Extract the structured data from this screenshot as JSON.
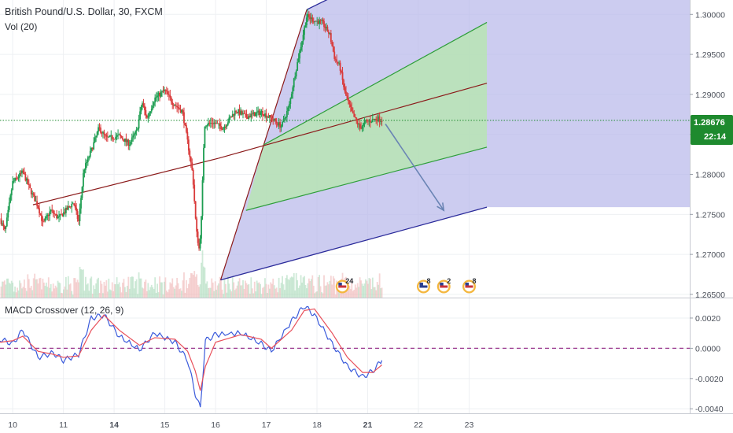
{
  "header": {
    "title": "British Pound/U.S. Dollar, 30, FXCM",
    "volume_label": "Vol (20)",
    "macd_label": "MACD Crossover (12, 26, 9)"
  },
  "price_badge": {
    "value": "1.28676",
    "countdown": "22:14",
    "color": "#1e8a2e"
  },
  "events": [
    {
      "flag": "us",
      "count": "24",
      "date_index": 20.5
    },
    {
      "flag": "uk",
      "count": "8",
      "date_index": 22.1
    },
    {
      "flag": "us",
      "count": "2",
      "date_index": 22.5
    },
    {
      "flag": "us",
      "count": "8",
      "date_index": 23.0
    }
  ],
  "chart_data": [
    {
      "type": "candlestick",
      "instrument": "British Pound/U.S. Dollar",
      "interval": "30",
      "source": "FXCM",
      "y_axis": {
        "range": [
          1.2646,
          1.3018
        ],
        "ticks": [
          "1.30000",
          "1.29500",
          "1.29000",
          "1.28500",
          "1.28000",
          "1.27500",
          "1.27000",
          "1.26500"
        ]
      },
      "x_axis": {
        "range": [
          9.75,
          23.35
        ],
        "ticks": [
          {
            "value": 10,
            "label": "10",
            "bold": false
          },
          {
            "value": 11,
            "label": "11",
            "bold": false
          },
          {
            "value": 12,
            "label": "14",
            "bold": true
          },
          {
            "value": 13,
            "label": "15",
            "bold": false
          },
          {
            "value": 14,
            "label": "16",
            "bold": false
          },
          {
            "value": 15,
            "label": "17",
            "bold": false
          },
          {
            "value": 16,
            "label": "18",
            "bold": false
          },
          {
            "value": 17,
            "label": "21",
            "bold": true
          },
          {
            "value": 18,
            "label": "22",
            "bold": false
          },
          {
            "value": 19,
            "label": "23",
            "bold": false
          }
        ]
      },
      "last_price": 1.28676,
      "price_path": [
        [
          9.75,
          1.2745
        ],
        [
          9.85,
          1.2728
        ],
        [
          10.0,
          1.279
        ],
        [
          10.2,
          1.2803
        ],
        [
          10.35,
          1.278
        ],
        [
          10.5,
          1.276
        ],
        [
          10.6,
          1.2738
        ],
        [
          10.75,
          1.2755
        ],
        [
          10.9,
          1.2745
        ],
        [
          11.05,
          1.2755
        ],
        [
          11.2,
          1.2765
        ],
        [
          11.3,
          1.274
        ],
        [
          11.4,
          1.2805
        ],
        [
          11.55,
          1.283
        ],
        [
          11.7,
          1.2858
        ],
        [
          11.85,
          1.2845
        ],
        [
          12.1,
          1.2848
        ],
        [
          12.3,
          1.2838
        ],
        [
          12.45,
          1.2855
        ],
        [
          12.55,
          1.289
        ],
        [
          12.65,
          1.287
        ],
        [
          12.8,
          1.2895
        ],
        [
          13.0,
          1.2905
        ],
        [
          13.15,
          1.289
        ],
        [
          13.35,
          1.2878
        ],
        [
          13.45,
          1.284
        ],
        [
          13.55,
          1.28
        ],
        [
          13.62,
          1.273
        ],
        [
          13.68,
          1.2705
        ],
        [
          13.72,
          1.2745
        ],
        [
          13.78,
          1.2862
        ],
        [
          13.95,
          1.2865
        ],
        [
          14.15,
          1.2858
        ],
        [
          14.4,
          1.288
        ],
        [
          14.6,
          1.2872
        ],
        [
          14.9,
          1.2878
        ],
        [
          15.1,
          1.287
        ],
        [
          15.3,
          1.286
        ],
        [
          15.45,
          1.2885
        ],
        [
          15.55,
          1.292
        ],
        [
          15.68,
          1.296
        ],
        [
          15.8,
          1.2998
        ],
        [
          15.95,
          1.2992
        ],
        [
          16.1,
          1.299
        ],
        [
          16.25,
          1.2975
        ],
        [
          16.35,
          1.2945
        ],
        [
          16.45,
          1.2935
        ],
        [
          16.55,
          1.2902
        ],
        [
          16.7,
          1.2875
        ],
        [
          16.85,
          1.2858
        ],
        [
          16.95,
          1.2865
        ],
        [
          17.05,
          1.2867
        ],
        [
          17.2,
          1.287
        ],
        [
          17.28,
          1.28676
        ]
      ],
      "projection_arrow": [
        [
          17.35,
          1.2863
        ],
        [
          18.5,
          1.2755
        ]
      ],
      "pitchfork": {
        "pivot": [
          14.1,
          1.2668
        ],
        "anchor_high": [
          15.8,
          1.3006
        ],
        "anchor_low": [
          14.6,
          1.2755
        ],
        "median_end": [
          19.35,
          1.2914
        ],
        "upper_parallel_end": [
          19.35,
          1.299
        ],
        "lower_parallel_end": [
          19.35,
          1.2834
        ],
        "outer_upper_end": [
          16.25,
          1.302
        ],
        "outer_lower_end": [
          19.35,
          1.2759
        ],
        "trendline": [
          [
            10.4,
            1.2762
          ],
          [
            14.05,
            1.282
          ]
        ]
      },
      "colors": {
        "up": "#1e9e52",
        "down": "#d93a3a",
        "median": "#8b1a1a",
        "inner_band": "#b7e4b4",
        "outer_band": "#b9b8ea",
        "outer_line": "#2a2a9a",
        "arrow": "#6a84b4"
      }
    },
    {
      "type": "line",
      "title": "MACD Crossover (12, 26, 9)",
      "y_axis": {
        "range": [
          -0.0043,
          0.0033
        ],
        "ticks": [
          "0.0020",
          "0.0000",
          "-0.0020",
          "-0.0040"
        ]
      },
      "series": [
        {
          "role": "macd",
          "color": "#3b5bdb",
          "points": [
            [
              9.75,
              0.0006
            ],
            [
              10.0,
              0.0003
            ],
            [
              10.2,
              0.0012
            ],
            [
              10.5,
              -0.0006
            ],
            [
              10.8,
              -0.0003
            ],
            [
              11.0,
              -0.0008
            ],
            [
              11.3,
              -0.0004
            ],
            [
              11.55,
              0.002
            ],
            [
              11.8,
              0.0022
            ],
            [
              12.1,
              0.0008
            ],
            [
              12.5,
              -0.0001
            ],
            [
              12.8,
              0.001
            ],
            [
              13.2,
              0.0004
            ],
            [
              13.45,
              -0.0008
            ],
            [
              13.6,
              -0.003
            ],
            [
              13.7,
              -0.004
            ],
            [
              13.8,
              0.0005
            ],
            [
              14.0,
              0.0009
            ],
            [
              14.5,
              0.001
            ],
            [
              14.9,
              0.0003
            ],
            [
              15.1,
              -0.0002
            ],
            [
              15.5,
              0.0018
            ],
            [
              15.75,
              0.0028
            ],
            [
              15.95,
              0.0022
            ],
            [
              16.3,
              0.0003
            ],
            [
              16.6,
              -0.0012
            ],
            [
              16.9,
              -0.0019
            ],
            [
              17.1,
              -0.0015
            ],
            [
              17.28,
              -0.0008
            ]
          ]
        },
        {
          "role": "signal",
          "color": "#e8505b",
          "points": [
            [
              9.75,
              0.0004
            ],
            [
              10.0,
              0.0005
            ],
            [
              10.2,
              0.0008
            ],
            [
              10.5,
              -0.0002
            ],
            [
              10.8,
              -0.0004
            ],
            [
              11.0,
              -0.0006
            ],
            [
              11.3,
              -0.0005
            ],
            [
              11.55,
              0.0012
            ],
            [
              11.8,
              0.0022
            ],
            [
              12.1,
              0.0012
            ],
            [
              12.5,
              0.0002
            ],
            [
              12.8,
              0.0007
            ],
            [
              13.2,
              0.0006
            ],
            [
              13.45,
              -0.0002
            ],
            [
              13.6,
              -0.0015
            ],
            [
              13.7,
              -0.0028
            ],
            [
              13.8,
              -0.0012
            ],
            [
              14.0,
              0.0004
            ],
            [
              14.5,
              0.0009
            ],
            [
              14.9,
              0.0006
            ],
            [
              15.1,
              0.0
            ],
            [
              15.5,
              0.0012
            ],
            [
              15.75,
              0.0025
            ],
            [
              15.95,
              0.0026
            ],
            [
              16.3,
              0.001
            ],
            [
              16.6,
              -0.0006
            ],
            [
              16.9,
              -0.0016
            ],
            [
              17.1,
              -0.0016
            ],
            [
              17.28,
              -0.0011
            ]
          ]
        }
      ],
      "zero_line_color": "#9b3a8f"
    }
  ]
}
